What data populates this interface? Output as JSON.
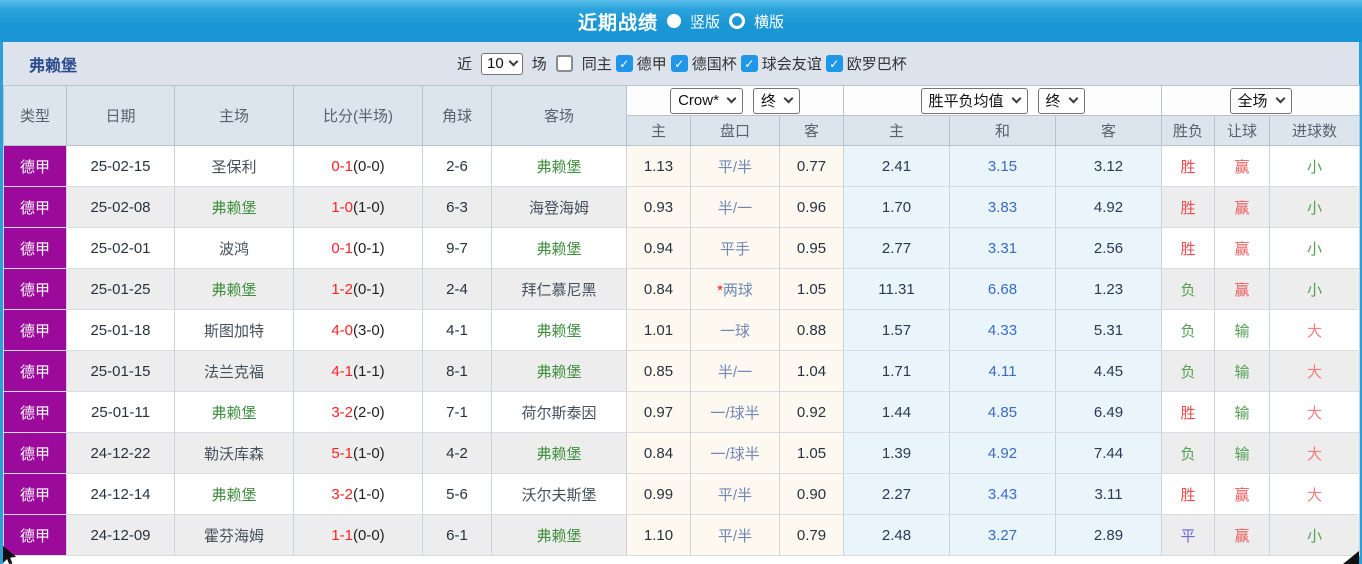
{
  "title_bar": {
    "title": "近期战绩",
    "radio_vertical": "竖版",
    "radio_horizontal": "横版"
  },
  "filter_bar": {
    "team": "弗赖堡",
    "near_label": "近",
    "count_select": "10",
    "games_label": "场",
    "same_home_label": "同主",
    "leagues": [
      {
        "label": "德甲",
        "checked": true
      },
      {
        "label": "德国杯",
        "checked": true
      },
      {
        "label": "球会友谊",
        "checked": true
      },
      {
        "label": "欧罗巴杯",
        "checked": true
      }
    ]
  },
  "table": {
    "static_headers": [
      "类型",
      "日期",
      "主场",
      "比分(半场)",
      "角球",
      "客场"
    ],
    "group_selects": {
      "odds_company": "Crow*",
      "odds_time": "终",
      "avg_label": "胜平负均值",
      "avg_time": "终",
      "scope": "全场"
    },
    "sub_headers": [
      "主",
      "盘口",
      "客",
      "主",
      "和",
      "客",
      "胜负",
      "让球",
      "进球数"
    ],
    "rows": [
      {
        "league": "德甲",
        "date": "25-02-15",
        "home": "圣保利",
        "score": "0-1",
        "half": "(0-0)",
        "corners": "2-6",
        "away": "弗赖堡",
        "odds_home": "1.13",
        "handicap": "平/半",
        "star": false,
        "odds_away": "0.77",
        "avg_win": "2.41",
        "avg_draw": "3.15",
        "avg_lose": "3.12",
        "result": "胜",
        "handicap_result": "赢",
        "goals": "小"
      },
      {
        "league": "德甲",
        "date": "25-02-08",
        "home": "弗赖堡",
        "score": "1-0",
        "half": "(1-0)",
        "corners": "6-3",
        "away": "海登海姆",
        "odds_home": "0.93",
        "handicap": "半/一",
        "star": false,
        "odds_away": "0.96",
        "avg_win": "1.70",
        "avg_draw": "3.83",
        "avg_lose": "4.92",
        "result": "胜",
        "handicap_result": "赢",
        "goals": "小"
      },
      {
        "league": "德甲",
        "date": "25-02-01",
        "home": "波鸿",
        "score": "0-1",
        "half": "(0-1)",
        "corners": "9-7",
        "away": "弗赖堡",
        "odds_home": "0.94",
        "handicap": "平手",
        "star": false,
        "odds_away": "0.95",
        "avg_win": "2.77",
        "avg_draw": "3.31",
        "avg_lose": "2.56",
        "result": "胜",
        "handicap_result": "赢",
        "goals": "小"
      },
      {
        "league": "德甲",
        "date": "25-01-25",
        "home": "弗赖堡",
        "score": "1-2",
        "half": "(0-1)",
        "corners": "2-4",
        "away": "拜仁慕尼黑",
        "odds_home": "0.84",
        "handicap": "两球",
        "star": true,
        "odds_away": "1.05",
        "avg_win": "11.31",
        "avg_draw": "6.68",
        "avg_lose": "1.23",
        "result": "负",
        "handicap_result": "赢",
        "goals": "小"
      },
      {
        "league": "德甲",
        "date": "25-01-18",
        "home": "斯图加特",
        "score": "4-0",
        "half": "(3-0)",
        "corners": "4-1",
        "away": "弗赖堡",
        "odds_home": "1.01",
        "handicap": "一球",
        "star": false,
        "odds_away": "0.88",
        "avg_win": "1.57",
        "avg_draw": "4.33",
        "avg_lose": "5.31",
        "result": "负",
        "handicap_result": "输",
        "goals": "大"
      },
      {
        "league": "德甲",
        "date": "25-01-15",
        "home": "法兰克福",
        "score": "4-1",
        "half": "(1-1)",
        "corners": "8-1",
        "away": "弗赖堡",
        "odds_home": "0.85",
        "handicap": "半/一",
        "star": false,
        "odds_away": "1.04",
        "avg_win": "1.71",
        "avg_draw": "4.11",
        "avg_lose": "4.45",
        "result": "负",
        "handicap_result": "输",
        "goals": "大"
      },
      {
        "league": "德甲",
        "date": "25-01-11",
        "home": "弗赖堡",
        "score": "3-2",
        "half": "(2-0)",
        "corners": "7-1",
        "away": "荷尔斯泰因",
        "odds_home": "0.97",
        "handicap": "一/球半",
        "star": false,
        "odds_away": "0.92",
        "avg_win": "1.44",
        "avg_draw": "4.85",
        "avg_lose": "6.49",
        "result": "胜",
        "handicap_result": "输",
        "goals": "大"
      },
      {
        "league": "德甲",
        "date": "24-12-22",
        "home": "勒沃库森",
        "score": "5-1",
        "half": "(1-0)",
        "corners": "4-2",
        "away": "弗赖堡",
        "odds_home": "0.84",
        "handicap": "一/球半",
        "star": false,
        "odds_away": "1.05",
        "avg_win": "1.39",
        "avg_draw": "4.92",
        "avg_lose": "7.44",
        "result": "负",
        "handicap_result": "输",
        "goals": "大"
      },
      {
        "league": "德甲",
        "date": "24-12-14",
        "home": "弗赖堡",
        "score": "3-2",
        "half": "(1-0)",
        "corners": "5-6",
        "away": "沃尔夫斯堡",
        "odds_home": "0.99",
        "handicap": "平/半",
        "star": false,
        "odds_away": "0.90",
        "avg_win": "2.27",
        "avg_draw": "3.43",
        "avg_lose": "3.11",
        "result": "胜",
        "handicap_result": "赢",
        "goals": "大"
      },
      {
        "league": "德甲",
        "date": "24-12-09",
        "home": "霍芬海姆",
        "score": "1-1",
        "half": "(0-0)",
        "corners": "6-1",
        "away": "弗赖堡",
        "odds_home": "1.10",
        "handicap": "平/半",
        "star": false,
        "odds_away": "0.79",
        "avg_win": "2.48",
        "avg_draw": "3.27",
        "avg_lose": "2.89",
        "result": "平",
        "handicap_result": "赢",
        "goals": "小"
      }
    ]
  },
  "colors": {
    "topbar_blue": "#1b96d4",
    "league_purple": "#9c0a9c",
    "focus_team_green": "#3f8f3f",
    "score_red": "#ff2222",
    "odds_col_cream": "#fdf9f1",
    "avg_col_blue": "#eaf4fb",
    "avg_draw_blue": "#3a6cc6",
    "handicap_blue": "#7287b5",
    "checkbox_blue": "#2096e8"
  },
  "color_map": {
    "胜": "#e84f4f",
    "负": "#55a055",
    "平": "#6a6ada",
    "赢": "#ec5d5d",
    "输": "#55a055",
    "大": "#f07f7f",
    "小": "#55a055"
  }
}
